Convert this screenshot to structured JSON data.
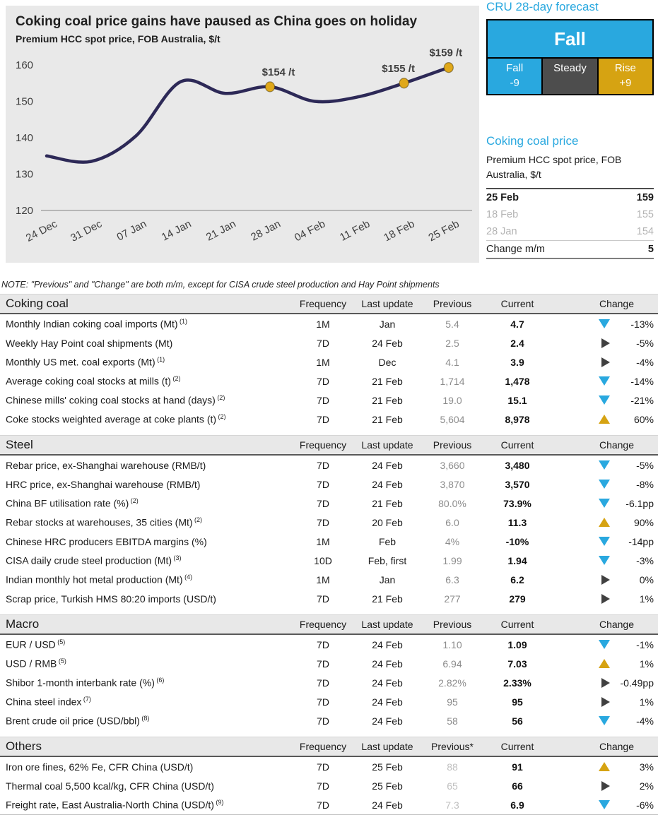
{
  "colors": {
    "accent_blue": "#29a8df",
    "gold": "#d6a312",
    "dark_gray": "#4d4d4d",
    "triangle_right": "#404040",
    "line_navy": "#2d2957",
    "chart_bg": "#e9e9e9"
  },
  "chart_data": {
    "type": "line",
    "title": "Coking coal price gains have paused as China goes on holiday",
    "subtitle": "Premium HCC spot price, FOB Australia, $/t",
    "x": [
      "24 Dec",
      "31 Dec",
      "07 Jan",
      "14 Jan",
      "21 Jan",
      "28 Jan",
      "04 Feb",
      "11 Feb",
      "18 Feb",
      "25 Feb"
    ],
    "values": [
      135,
      133.5,
      140.5,
      155.4,
      152.2,
      154,
      150,
      151.3,
      155,
      159.3
    ],
    "ylim": [
      120,
      160
    ],
    "yticks": [
      160,
      150,
      140,
      130,
      120
    ],
    "grid": false,
    "legend": "none",
    "line_color": "#2d2957",
    "marker_color": "#e0a81a",
    "annotations": [
      {
        "x": "28 Jan",
        "value": 154,
        "label": "$154 /t"
      },
      {
        "x": "18 Feb",
        "value": 155,
        "label": "$155 /t"
      },
      {
        "x": "25 Feb",
        "value": 159,
        "label": "$159 /t"
      }
    ]
  },
  "forecast": {
    "heading": "CRU 28-day forecast",
    "main_label": "Fall",
    "options": [
      {
        "label": "Fall",
        "delta": "-9",
        "color": "#29a8df"
      },
      {
        "label": "Steady",
        "delta": "",
        "color": "#4d4d4d"
      },
      {
        "label": "Rise",
        "delta": "+9",
        "color": "#d6a312"
      }
    ]
  },
  "price_block": {
    "heading": "Coking coal price",
    "subtitle": "Premium HCC spot price, FOB Australia, $/t",
    "rows": [
      {
        "label": "25 Feb",
        "value": "159",
        "style": "bold"
      },
      {
        "label": "18 Feb",
        "value": "155",
        "style": "muted"
      },
      {
        "label": "28 Jan",
        "value": "154",
        "style": "muted"
      },
      {
        "label": "Change m/m",
        "value": "5",
        "style": "change"
      }
    ]
  },
  "note": "NOTE: \"Previous\" and \"Change\" are both m/m, except for CISA crude steel production and Hay Point shipments",
  "sections": [
    {
      "title": "Coking coal",
      "columns": [
        "Frequency",
        "Last update",
        "Previous",
        "Current",
        "Change"
      ],
      "prev_light": false,
      "rows": [
        {
          "label": "Monthly Indian coking coal imports (Mt)",
          "sup": "(1)",
          "freq": "1M",
          "last": "Jan",
          "prev": "5.4",
          "curr": "4.7",
          "dir": "down",
          "change": "-13%"
        },
        {
          "label": "Weekly Hay Point coal shipments (Mt)",
          "sup": "",
          "freq": "7D",
          "last": "24 Feb",
          "prev": "2.5",
          "curr": "2.4",
          "dir": "right",
          "change": "-5%"
        },
        {
          "label": "Monthly US met. coal exports (Mt)",
          "sup": "(1)",
          "freq": "1M",
          "last": "Dec",
          "prev": "4.1",
          "curr": "3.9",
          "dir": "right",
          "change": "-4%"
        },
        {
          "label": "Average coking coal stocks at mills (t)",
          "sup": "(2)",
          "freq": "7D",
          "last": "21 Feb",
          "prev": "1,714",
          "curr": "1,478",
          "dir": "down",
          "change": "-14%"
        },
        {
          "label": "Chinese mills' coking coal stocks at hand (days)",
          "sup": "(2)",
          "freq": "7D",
          "last": "21 Feb",
          "prev": "19.0",
          "curr": "15.1",
          "dir": "down",
          "change": "-21%"
        },
        {
          "label": "Coke stocks weighted average at coke plants (t)",
          "sup": "(2)",
          "freq": "7D",
          "last": "21 Feb",
          "prev": "5,604",
          "curr": "8,978",
          "dir": "up",
          "change": "60%"
        }
      ]
    },
    {
      "title": "Steel",
      "columns": [
        "Frequency",
        "Last update",
        "Previous",
        "Current",
        "Change"
      ],
      "prev_light": false,
      "rows": [
        {
          "label": "Rebar price, ex-Shanghai warehouse (RMB/t)",
          "sup": "",
          "freq": "7D",
          "last": "24 Feb",
          "prev": "3,660",
          "curr": "3,480",
          "dir": "down",
          "change": "-5%"
        },
        {
          "label": "HRC price, ex-Shanghai warehouse (RMB/t)",
          "sup": "",
          "freq": "7D",
          "last": "24 Feb",
          "prev": "3,870",
          "curr": "3,570",
          "dir": "down",
          "change": "-8%"
        },
        {
          "label": "China BF utilisation rate (%)",
          "sup": "(2)",
          "freq": "7D",
          "last": "21 Feb",
          "prev": "80.0%",
          "curr": "73.9%",
          "dir": "down",
          "change": "-6.1pp"
        },
        {
          "label": "Rebar stocks at warehouses, 35 cities (Mt)",
          "sup": "(2)",
          "freq": "7D",
          "last": "20 Feb",
          "prev": "6.0",
          "curr": "11.3",
          "dir": "up",
          "change": "90%"
        },
        {
          "label": "Chinese HRC producers EBITDA margins (%)",
          "sup": "",
          "freq": "1M",
          "last": "Feb",
          "prev": "4%",
          "curr": "-10%",
          "dir": "down",
          "change": "-14pp"
        },
        {
          "label": "CISA daily crude steel production (Mt)",
          "sup": "(3)",
          "freq": "10D",
          "last": "Feb, first",
          "prev": "1.99",
          "curr": "1.94",
          "dir": "down",
          "change": "-3%"
        },
        {
          "label": "Indian monthly hot metal production (Mt)",
          "sup": "(4)",
          "freq": "1M",
          "last": "Jan",
          "prev": "6.3",
          "curr": "6.2",
          "dir": "right",
          "change": "0%"
        },
        {
          "label": "Scrap price, Turkish HMS 80:20 imports (USD/t)",
          "sup": "",
          "freq": "7D",
          "last": "21 Feb",
          "prev": "277",
          "curr": "279",
          "dir": "right",
          "change": "1%"
        }
      ]
    },
    {
      "title": "Macro",
      "columns": [
        "Frequency",
        "Last update",
        "Previous",
        "Current",
        "Change"
      ],
      "prev_light": false,
      "rows": [
        {
          "label": "EUR / USD",
          "sup": "(5)",
          "freq": "7D",
          "last": "24 Feb",
          "prev": "1.10",
          "curr": "1.09",
          "dir": "down",
          "change": "-1%"
        },
        {
          "label": "USD / RMB",
          "sup": "(5)",
          "freq": "7D",
          "last": "24 Feb",
          "prev": "6.94",
          "curr": "7.03",
          "dir": "up",
          "change": "1%"
        },
        {
          "label": "Shibor 1-month interbank rate (%)",
          "sup": "(6)",
          "freq": "7D",
          "last": "24 Feb",
          "prev": "2.82%",
          "curr": "2.33%",
          "dir": "right",
          "change": "-0.49pp"
        },
        {
          "label": "China steel index",
          "sup": "(7)",
          "freq": "7D",
          "last": "24 Feb",
          "prev": "95",
          "curr": "95",
          "dir": "right",
          "change": "1%"
        },
        {
          "label": "Brent crude oil price (USD/bbl)",
          "sup": "(8)",
          "freq": "7D",
          "last": "24 Feb",
          "prev": "58",
          "curr": "56",
          "dir": "down",
          "change": "-4%"
        }
      ]
    },
    {
      "title": "Others",
      "columns": [
        "Frequency",
        "Last update",
        "Previous*",
        "Current",
        "Change"
      ],
      "prev_light": true,
      "rows": [
        {
          "label": "Iron ore fines, 62% Fe, CFR China (USD/t)",
          "sup": "",
          "freq": "7D",
          "last": "25 Feb",
          "prev": "88",
          "curr": "91",
          "dir": "up",
          "change": "3%"
        },
        {
          "label": "Thermal coal 5,500 kcal/kg, CFR China (USD/t)",
          "sup": "",
          "freq": "7D",
          "last": "25 Feb",
          "prev": "65",
          "curr": "66",
          "dir": "right",
          "change": "2%"
        },
        {
          "label": "Freight rate, East Australia-North China (USD/t)",
          "sup": "(9)",
          "freq": "7D",
          "last": "24 Feb",
          "prev": "7.3",
          "curr": "6.9",
          "dir": "down",
          "change": "-6%"
        }
      ]
    }
  ]
}
